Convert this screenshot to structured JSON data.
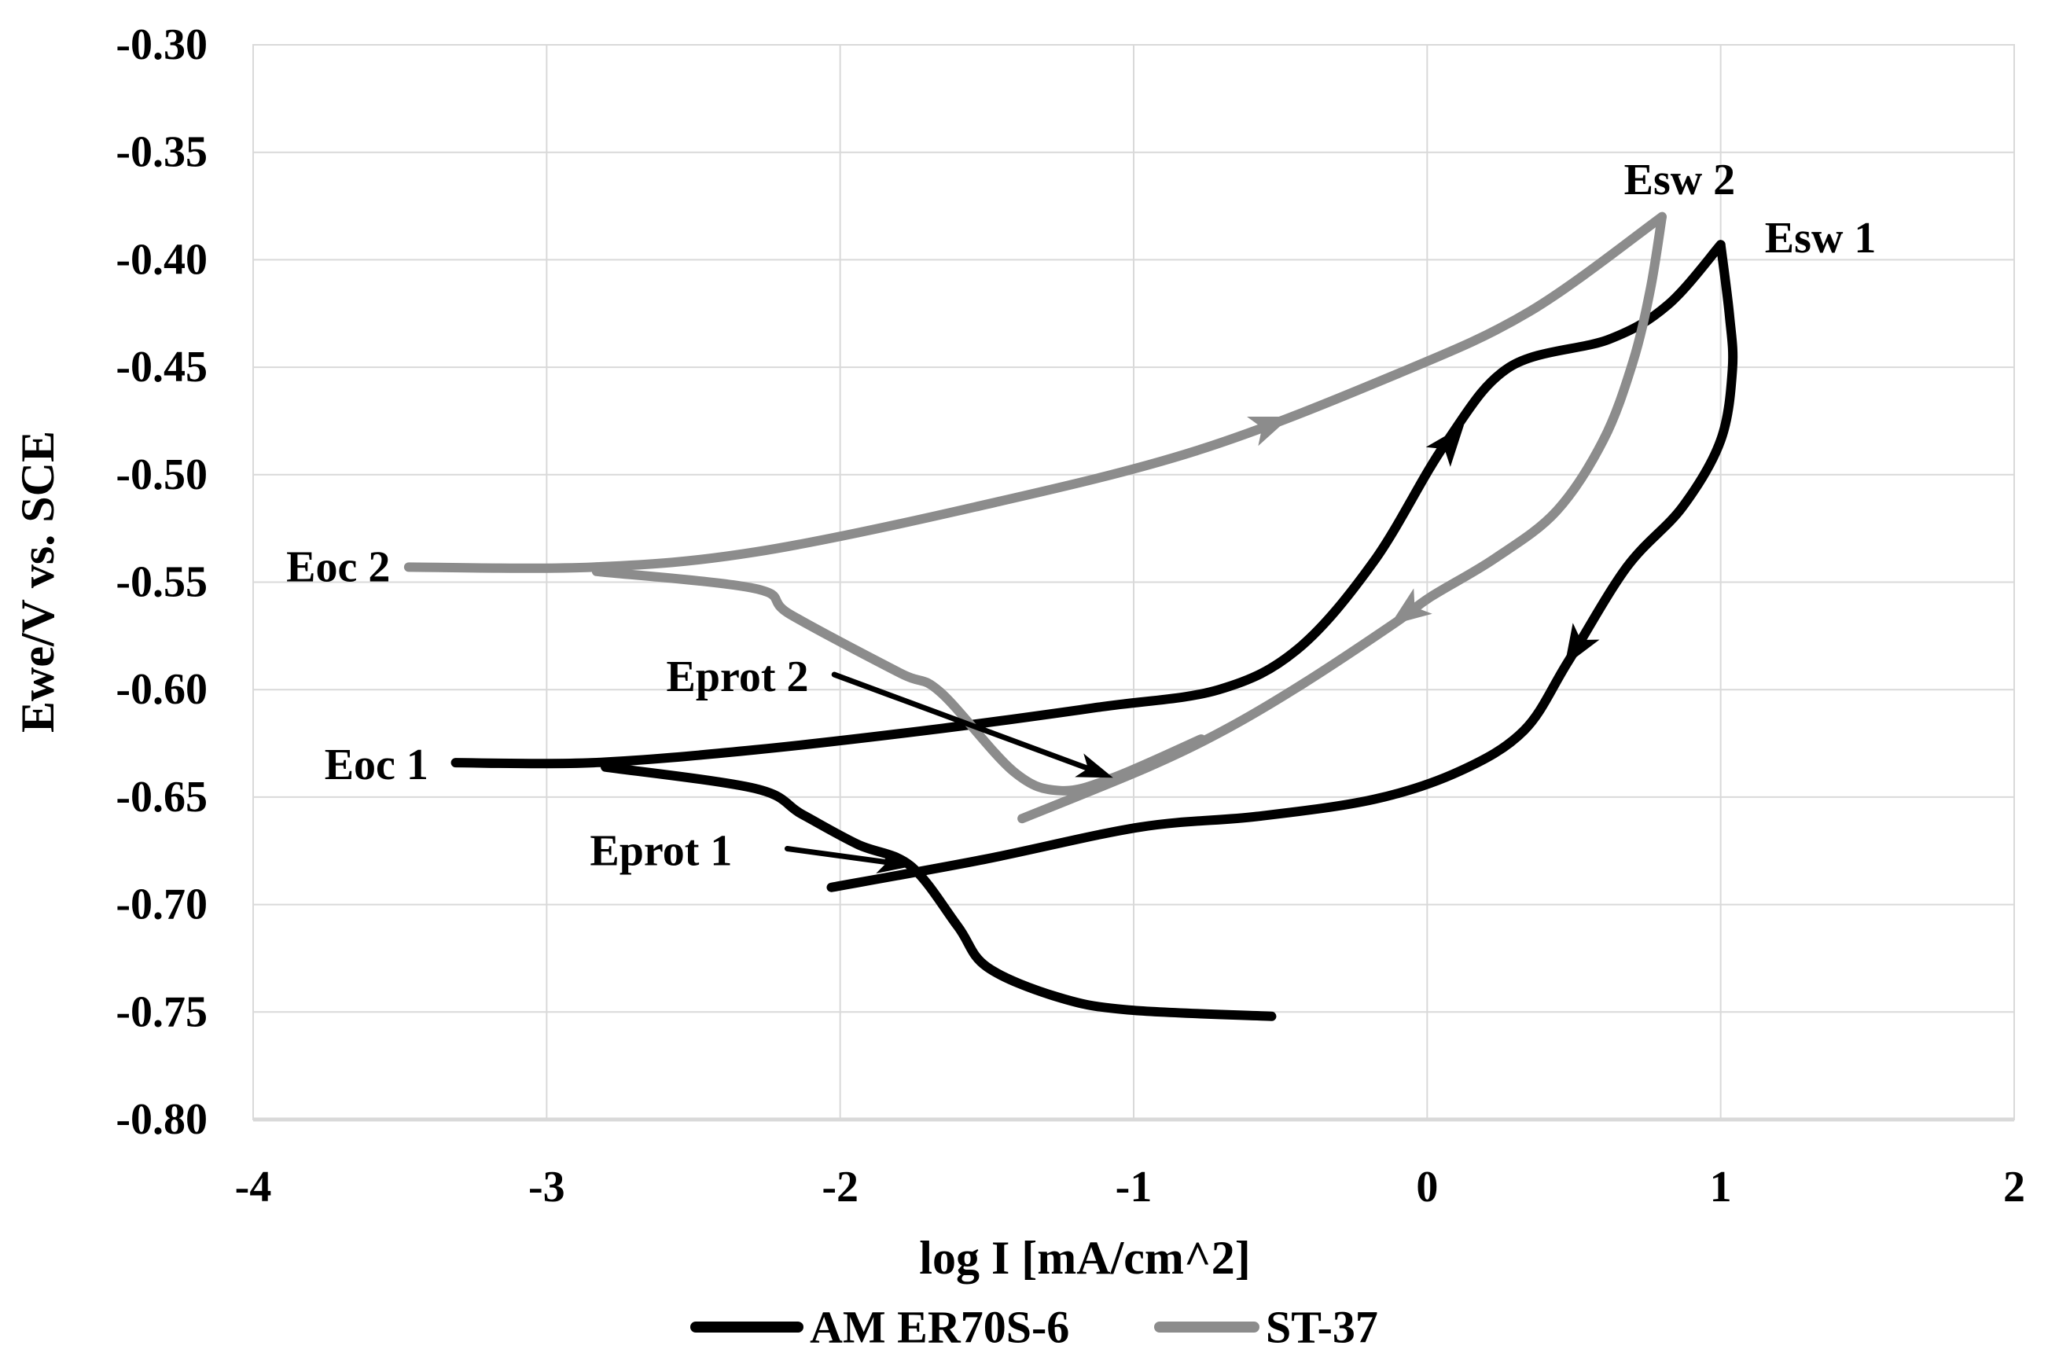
{
  "chart_data": {
    "type": "line",
    "title": "",
    "xlabel": "log I [mA/cm^2]",
    "ylabel": "Ewe/V vs. SCE",
    "xlim": [
      -4,
      2
    ],
    "ylim": [
      -0.8,
      -0.3
    ],
    "grid": true,
    "legend_position": "bottom-center",
    "x_ticks": {
      "values": [
        -4,
        -3,
        -2,
        -1,
        0,
        1,
        2
      ],
      "labels": [
        "-4",
        "-3",
        "-2",
        "-1",
        "0",
        "1",
        "2"
      ]
    },
    "y_ticks": {
      "values": [
        -0.3,
        -0.35,
        -0.4,
        -0.45,
        -0.5,
        -0.55,
        -0.6,
        -0.65,
        -0.7,
        -0.75,
        -0.8
      ],
      "labels": [
        "-0.30",
        "-0.35",
        "-0.40",
        "-0.45",
        "-0.50",
        "-0.55",
        "-0.60",
        "-0.65",
        "-0.70",
        "-0.75",
        "-0.80"
      ]
    },
    "series": [
      {
        "name": "AM ER70S-6",
        "color": "#000000",
        "segments": [
          {
            "name": "forward-anodic",
            "points": [
              [
                -3.31,
                -0.634
              ],
              [
                -2.84,
                -0.634
              ],
              [
                -2.29,
                -0.628
              ],
              [
                -1.65,
                -0.618
              ],
              [
                -1.11,
                -0.608
              ],
              [
                -0.71,
                -0.6
              ],
              [
                -0.44,
                -0.581
              ],
              [
                -0.18,
                -0.54
              ],
              [
                0.06,
                -0.486
              ],
              [
                0.28,
                -0.45
              ],
              [
                0.62,
                -0.437
              ],
              [
                0.82,
                -0.421
              ],
              [
                1.0,
                -0.393
              ]
            ]
          },
          {
            "name": "reverse-scan",
            "points": [
              [
                1.0,
                -0.393
              ],
              [
                1.03,
                -0.426
              ],
              [
                1.04,
                -0.451
              ],
              [
                1.0,
                -0.484
              ],
              [
                0.87,
                -0.515
              ],
              [
                0.68,
                -0.543
              ],
              [
                0.48,
                -0.587
              ],
              [
                0.33,
                -0.619
              ],
              [
                0.11,
                -0.638
              ],
              [
                -0.18,
                -0.651
              ],
              [
                -0.58,
                -0.659
              ],
              [
                -0.98,
                -0.664
              ],
              [
                -1.51,
                -0.679
              ],
              [
                -2.03,
                -0.692
              ]
            ]
          },
          {
            "name": "cathodic-branch",
            "points": [
              [
                -2.8,
                -0.636
              ],
              [
                -2.29,
                -0.646
              ],
              [
                -2.13,
                -0.658
              ],
              [
                -1.94,
                -0.672
              ],
              [
                -1.76,
                -0.682
              ],
              [
                -1.6,
                -0.71
              ],
              [
                -1.5,
                -0.729
              ],
              [
                -1.26,
                -0.743
              ],
              [
                -1.02,
                -0.749
              ],
              [
                -0.53,
                -0.752
              ]
            ]
          }
        ]
      },
      {
        "name": "ST-37",
        "color": "#8c8c8c",
        "segments": [
          {
            "name": "forward-anodic",
            "points": [
              [
                -3.47,
                -0.543
              ],
              [
                -2.84,
                -0.543
              ],
              [
                -2.29,
                -0.536
              ],
              [
                -1.54,
                -0.515
              ],
              [
                -0.79,
                -0.489
              ],
              [
                -0.1,
                -0.453
              ],
              [
                0.35,
                -0.424
              ],
              [
                0.8,
                -0.38
              ]
            ]
          },
          {
            "name": "reverse-scan",
            "points": [
              [
                0.8,
                -0.38
              ],
              [
                0.76,
                -0.414
              ],
              [
                0.7,
                -0.448
              ],
              [
                0.6,
                -0.484
              ],
              [
                0.44,
                -0.517
              ],
              [
                0.23,
                -0.539
              ],
              [
                0.01,
                -0.557
              ],
              [
                -0.11,
                -0.569
              ],
              [
                -0.42,
                -0.597
              ],
              [
                -0.68,
                -0.618
              ],
              [
                -0.95,
                -0.636
              ],
              [
                -1.38,
                -0.66
              ]
            ]
          },
          {
            "name": "cathodic-branch",
            "points": [
              [
                -2.83,
                -0.545
              ],
              [
                -2.29,
                -0.553
              ],
              [
                -2.17,
                -0.565
              ],
              [
                -1.8,
                -0.592
              ],
              [
                -1.66,
                -0.601
              ],
              [
                -1.41,
                -0.638
              ],
              [
                -1.25,
                -0.647
              ],
              [
                -1.07,
                -0.641
              ],
              [
                -0.77,
                -0.623
              ]
            ]
          }
        ]
      }
    ],
    "direction_arrows": [
      {
        "series": "ST-37",
        "x": -0.465,
        "y": -0.473,
        "angle_deg": -21,
        "color": "#8c8c8c"
      },
      {
        "series": "AM ER70S-6",
        "x": 0.125,
        "y": -0.477,
        "angle_deg": -51,
        "color": "#000000"
      },
      {
        "series": "ST-37",
        "x": -0.127,
        "y": -0.57,
        "angle_deg": 144,
        "color": "#8c8c8c"
      },
      {
        "series": "AM ER70S-6",
        "x": 0.468,
        "y": -0.589,
        "angle_deg": 122,
        "color": "#000000"
      }
    ],
    "annotations": [
      {
        "text": "Esw 2",
        "x": 0.86,
        "y": -0.363
      },
      {
        "text": "Esw 1",
        "x": 1.34,
        "y": -0.39
      },
      {
        "text": "Eoc 2",
        "x": -3.71,
        "y": -0.543
      },
      {
        "text": "Eoc 1",
        "x": -3.58,
        "y": -0.635
      },
      {
        "text": "Eprot 2",
        "x": -2.35,
        "y": -0.594,
        "arrow": {
          "from_x": -2.02,
          "from_y": -0.593,
          "to_x": -1.07,
          "to_y": -0.641
        }
      },
      {
        "text": "Eprot 1",
        "x": -2.61,
        "y": -0.675,
        "arrow": {
          "from_x": -2.18,
          "from_y": -0.674,
          "to_x": -1.75,
          "to_y": -0.682
        }
      }
    ]
  },
  "styles": {
    "background": "#ffffff",
    "grid_color": "#d9d9d9",
    "axis_line_color": "#d9d9d9",
    "text_color": "#000000",
    "curve_stroke_width": 12
  }
}
